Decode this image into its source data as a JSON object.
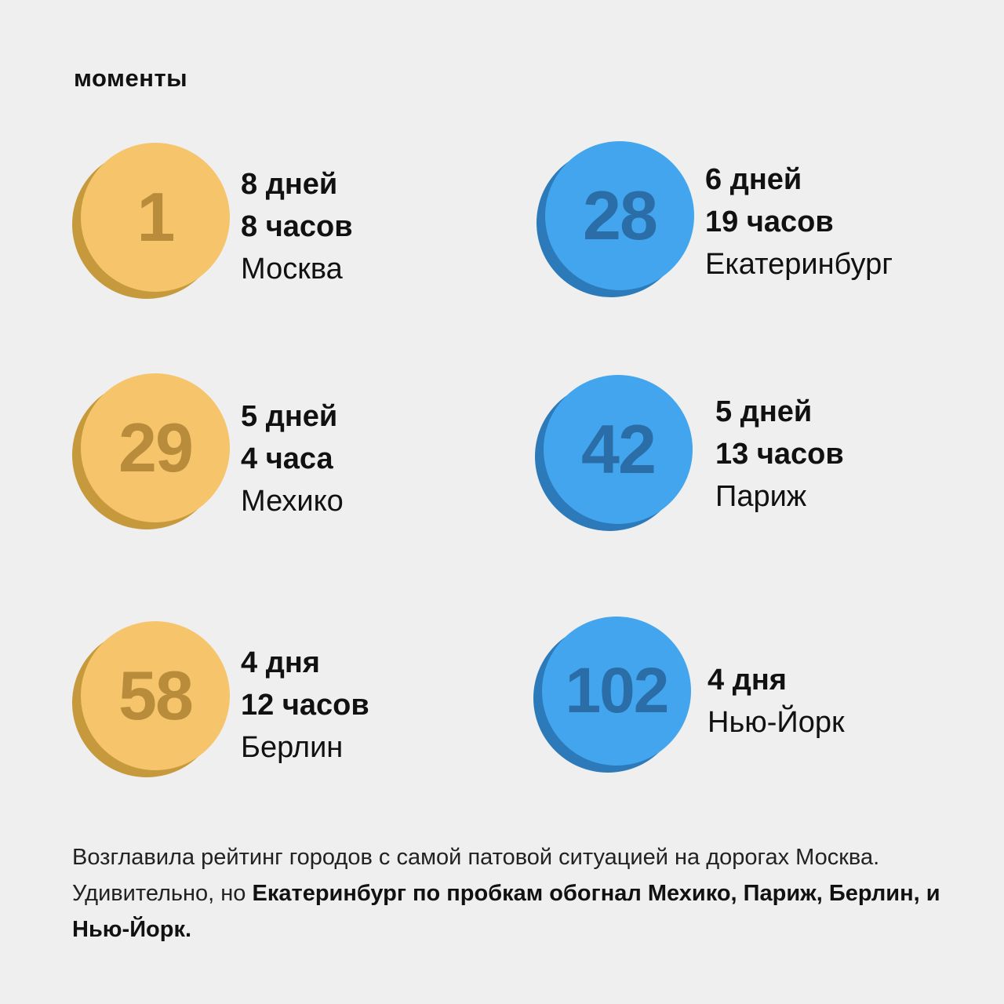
{
  "heading": "моменты",
  "colors": {
    "gold": "#f5c46b",
    "gold_dark": "#c69a3c",
    "blue": "#42a5ee",
    "blue_dark": "#2c7ab9",
    "background": "#efefef"
  },
  "cards": [
    {
      "rank": "1",
      "line1": "8 дней",
      "line2": "8 часов",
      "city": "Москва"
    },
    {
      "rank": "28",
      "line1": "6 дней",
      "line2": "19 часов",
      "city": "Екатеринбург"
    },
    {
      "rank": "29",
      "line1": "5 дней",
      "line2": "4 часа",
      "city": "Мехико"
    },
    {
      "rank": "42",
      "line1": "5 дней",
      "line2": "13 часов",
      "city": "Париж"
    },
    {
      "rank": "58",
      "line1": "4 дня",
      "line2": "12 часов",
      "city": "Берлин"
    },
    {
      "rank": "102",
      "line1": "4 дня",
      "city": "Нью-Йорк"
    }
  ],
  "footer": {
    "text_plain": "Возглавила рейтинг городов с самой патовой ситуацией на дорогах Москва. Удивительно, но ",
    "text_bold": "Екатеринбург по пробкам обогнал Мехико, Париж, Берлин, и Нью-Йорк."
  }
}
